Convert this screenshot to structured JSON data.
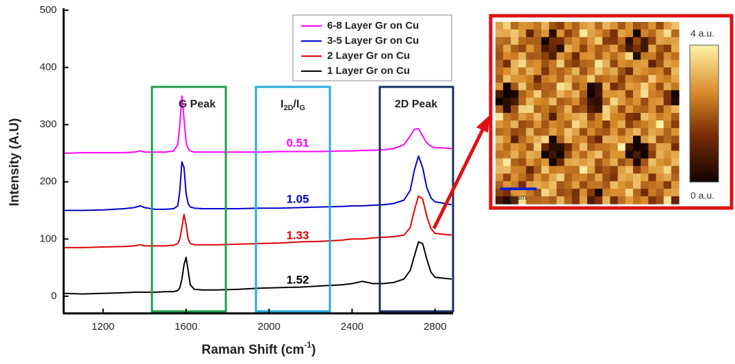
{
  "chart_data": {
    "type": "line",
    "y_label": "Intensity (A.U)",
    "x_label": [
      "Raman Shift (cm",
      "-1",
      ")"
    ],
    "xlim": [
      1010,
      2880
    ],
    "xticks": [
      1200,
      1600,
      2000,
      2400,
      2800
    ],
    "ylim": [
      -30,
      500
    ],
    "yticks": [
      0,
      100,
      200,
      300,
      400,
      500
    ],
    "legend": "upper right",
    "annotations": {
      "g_peak": "G Peak",
      "ratio": [
        "I",
        "2D",
        "/I",
        "G"
      ],
      "peak_2d": "2D Peak"
    },
    "x": [
      1010,
      1100,
      1200,
      1300,
      1350,
      1380,
      1400,
      1450,
      1500,
      1540,
      1560,
      1570,
      1580,
      1590,
      1600,
      1610,
      1620,
      1640,
      1680,
      1750,
      1850,
      1950,
      2050,
      2150,
      2250,
      2350,
      2400,
      2450,
      2500,
      2550,
      2600,
      2650,
      2680,
      2700,
      2720,
      2740,
      2760,
      2780,
      2800,
      2850,
      2880
    ],
    "series": [
      {
        "name": "6-8 Layer Gr on Cu",
        "color": "#ff00ff",
        "ratio": 0.51,
        "values": [
          250,
          251,
          251,
          251,
          252,
          254,
          252,
          252,
          252,
          254,
          265,
          300,
          350,
          310,
          270,
          258,
          254,
          252,
          252,
          252,
          252,
          252,
          253,
          253,
          253,
          254,
          254,
          255,
          255,
          256,
          258,
          265,
          280,
          292,
          293,
          280,
          268,
          262,
          260,
          259,
          258
        ]
      },
      {
        "name": "3-5 Layer Gr on Cu",
        "color": "#0000cc",
        "ratio": 1.05,
        "values": [
          150,
          150,
          151,
          153,
          155,
          158,
          155,
          152,
          152,
          153,
          158,
          185,
          235,
          225,
          180,
          162,
          156,
          154,
          153,
          153,
          153,
          154,
          154,
          155,
          156,
          157,
          158,
          158,
          159,
          160,
          162,
          168,
          185,
          220,
          245,
          225,
          190,
          172,
          165,
          162,
          160
        ]
      },
      {
        "name": "2 Layer Gr on Cu",
        "color": "#e00000",
        "ratio": 1.33,
        "values": [
          85,
          85,
          86,
          87,
          88,
          90,
          88,
          88,
          88,
          89,
          92,
          100,
          120,
          143,
          125,
          100,
          92,
          90,
          90,
          90,
          91,
          92,
          93,
          95,
          96,
          98,
          100,
          100,
          102,
          103,
          104,
          107,
          120,
          150,
          175,
          170,
          140,
          118,
          110,
          108,
          107
        ]
      },
      {
        "name": "1 Layer Gr on Cu",
        "color": "#000000",
        "ratio": 1.52,
        "values": [
          5,
          4,
          5,
          6,
          7,
          7,
          7,
          7,
          8,
          8,
          10,
          15,
          30,
          55,
          68,
          45,
          20,
          12,
          11,
          11,
          12,
          14,
          15,
          16,
          18,
          20,
          22,
          26,
          22,
          22,
          24,
          30,
          45,
          70,
          95,
          92,
          65,
          42,
          33,
          31,
          30
        ]
      }
    ]
  },
  "inset": {
    "colorbar_max": "4 a.u.",
    "colorbar_min": "0 a.u.",
    "scale_bar": "6 µm"
  }
}
